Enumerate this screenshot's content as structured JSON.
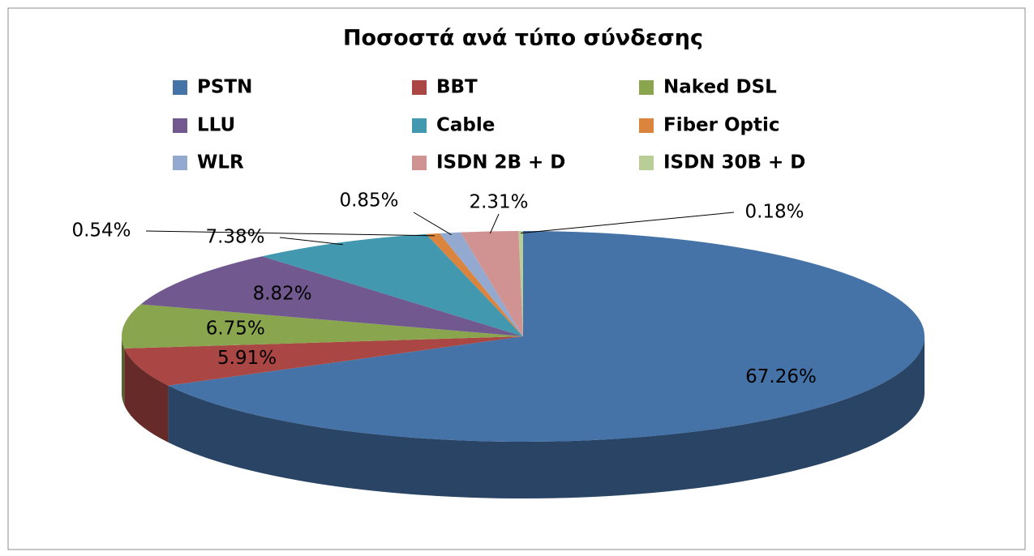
{
  "chart_data": {
    "type": "pie3d",
    "title": "Ποσοστά ανά τύπο σύνδεσης",
    "categories": [
      "PSTN",
      "BBT",
      "Naked DSL",
      "LLU",
      "Cable",
      "Fiber Optic",
      "WLR",
      "ISDN 2B + D",
      "ISDN 30B + D"
    ],
    "values": [
      67.26,
      5.91,
      6.75,
      8.82,
      7.38,
      0.54,
      0.85,
      2.31,
      0.18
    ],
    "value_labels": [
      "67.26%",
      "5.91%",
      "6.75%",
      "8.82%",
      "7.38%",
      "0.54%",
      "0.85%",
      "2.31%",
      "0.18%"
    ],
    "colors": [
      "#4572a7",
      "#aa4643",
      "#89a54e",
      "#71588f",
      "#4198af",
      "#db843d",
      "#93a9cf",
      "#d19392",
      "#b9cd96"
    ],
    "legend": "top"
  }
}
